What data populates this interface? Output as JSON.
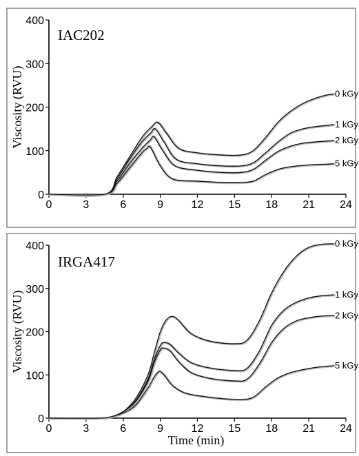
{
  "chart_data": [
    {
      "type": "line",
      "title": "IAC202",
      "xlabel": "",
      "ylabel": "Viscosity (RVU)",
      "xlim": [
        0,
        24
      ],
      "ylim": [
        0,
        400
      ],
      "xticks": [
        "0",
        "3",
        "6",
        "9",
        "12",
        "15",
        "18",
        "21",
        "24"
      ],
      "yticks": [
        "0",
        "100",
        "200",
        "300",
        "400"
      ],
      "grid": false,
      "legend": "inline labels at right end of each curve",
      "series": [
        {
          "name": "0 kGy",
          "x": [
            0,
            4.5,
            5.5,
            6.5,
            7.5,
            8.3,
            8.8,
            9.5,
            10.5,
            12,
            14,
            15.5,
            16.5,
            17.5,
            18.5,
            19.5,
            20.5,
            21.5,
            22.5,
            23
          ],
          "y": [
            0,
            0,
            40,
            85,
            130,
            155,
            165,
            140,
            105,
            95,
            90,
            90,
            100,
            130,
            165,
            190,
            208,
            220,
            228,
            230
          ]
        },
        {
          "name": "1 kGy",
          "x": [
            0,
            4.5,
            5.5,
            6.5,
            7.5,
            8.2,
            8.6,
            9.3,
            10.3,
            12,
            14,
            15.5,
            16.5,
            17.5,
            18.5,
            19.5,
            20.5,
            21.5,
            22.5,
            23
          ],
          "y": [
            0,
            0,
            35,
            80,
            120,
            140,
            150,
            120,
            80,
            70,
            65,
            65,
            72,
            95,
            120,
            140,
            150,
            155,
            158,
            160
          ]
        },
        {
          "name": "2 kGy",
          "x": [
            0,
            4.5,
            5.5,
            6.5,
            7.5,
            8.2,
            8.5,
            9.2,
            10.2,
            12,
            14,
            15.5,
            16.5,
            17.5,
            18.5,
            19.5,
            20.5,
            21.5,
            22.5,
            23
          ],
          "y": [
            0,
            0,
            30,
            70,
            105,
            125,
            132,
            100,
            65,
            55,
            50,
            50,
            57,
            78,
            98,
            110,
            117,
            120,
            122,
            123
          ]
        },
        {
          "name": "5 kGy",
          "x": [
            0,
            4.5,
            5.5,
            6.5,
            7.5,
            7.9,
            8.2,
            9.0,
            10.0,
            12,
            14,
            15.5,
            16.5,
            17.5,
            18.5,
            19.5,
            20.5,
            21.5,
            22.5,
            23
          ],
          "y": [
            0,
            0,
            25,
            60,
            95,
            105,
            108,
            65,
            35,
            30,
            27,
            27,
            30,
            45,
            57,
            63,
            66,
            68,
            69,
            70
          ]
        }
      ]
    },
    {
      "type": "line",
      "title": "IRGA417",
      "xlabel": "Time (min)",
      "ylabel": "Viscosity (RVU)",
      "xlim": [
        0,
        24
      ],
      "ylim": [
        0,
        400
      ],
      "xticks": [
        "0",
        "3",
        "6",
        "9",
        "12",
        "15",
        "18",
        "21",
        "24"
      ],
      "yticks": [
        "0",
        "100",
        "200",
        "300",
        "400"
      ],
      "grid": false,
      "legend": "inline labels at right end of each curve",
      "series": [
        {
          "name": "0 kGy",
          "x": [
            0,
            4,
            5,
            6,
            7,
            8,
            8.5,
            9,
            9.5,
            10,
            10.5,
            11.5,
            13,
            15,
            16,
            17,
            18,
            19,
            20,
            21,
            22,
            23
          ],
          "y": [
            0,
            0,
            3,
            15,
            45,
            100,
            150,
            200,
            228,
            235,
            225,
            195,
            178,
            172,
            180,
            225,
            290,
            340,
            375,
            395,
            402,
            403
          ]
        },
        {
          "name": "1 kGy",
          "x": [
            0,
            4,
            5,
            6,
            7,
            8,
            8.5,
            9,
            9.3,
            9.8,
            10.5,
            11.5,
            13,
            15,
            16,
            17,
            18,
            19,
            20,
            21,
            22,
            23
          ],
          "y": [
            0,
            0,
            3,
            15,
            40,
            90,
            135,
            168,
            175,
            170,
            150,
            128,
            116,
            110,
            115,
            155,
            215,
            250,
            268,
            278,
            283,
            285
          ]
        },
        {
          "name": "2 kGy",
          "x": [
            0,
            4,
            5,
            6,
            7,
            8,
            8.5,
            9,
            9.3,
            9.8,
            10.5,
            11.5,
            13,
            15,
            16,
            17,
            18,
            19,
            20,
            21,
            22,
            23
          ],
          "y": [
            0,
            0,
            3,
            15,
            38,
            85,
            128,
            158,
            162,
            155,
            130,
            105,
            92,
            86,
            90,
            125,
            175,
            208,
            225,
            232,
            236,
            237
          ]
        },
        {
          "name": "5 kGy",
          "x": [
            0,
            4,
            5,
            6,
            7,
            8,
            8.5,
            8.9,
            9.3,
            10,
            11,
            12.5,
            14,
            15.5,
            16.5,
            17.5,
            18.5,
            19.5,
            20.5,
            21.5,
            22.5,
            23
          ],
          "y": [
            0,
            0,
            3,
            12,
            30,
            70,
            95,
            108,
            100,
            75,
            58,
            50,
            45,
            43,
            48,
            72,
            93,
            105,
            112,
            117,
            120,
            121
          ]
        }
      ]
    }
  ]
}
